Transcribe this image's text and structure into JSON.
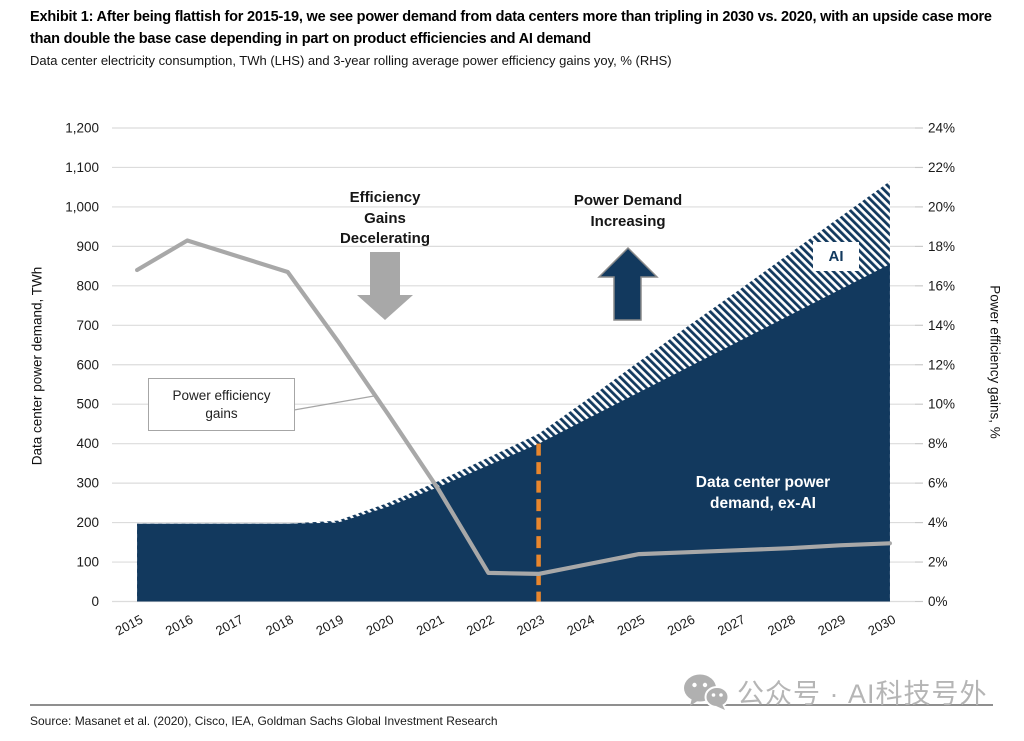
{
  "header": {
    "title": "Exhibit 1: After being flattish for 2015-19, we see power demand from data centers more than tripling in 2030 vs. 2020, with an upside case more than double the base case depending in part on product efficiencies and AI demand",
    "subtitle": "Data center electricity consumption, TWh (LHS) and 3-year rolling average power efficiency gains yoy, % (RHS)"
  },
  "chart_data": {
    "type": "area",
    "x": [
      2015,
      2016,
      2017,
      2018,
      2019,
      2020,
      2021,
      2022,
      2023,
      2024,
      2025,
      2026,
      2027,
      2028,
      2029,
      2030
    ],
    "series": [
      {
        "name": "Data center power demand, ex-AI",
        "type": "area",
        "axis": "left",
        "style": "solid",
        "values": [
          197,
          197,
          197,
          197,
          200,
          240,
          290,
          345,
          400,
          465,
          530,
          595,
          660,
          725,
          790,
          855
        ]
      },
      {
        "name": "AI",
        "type": "area",
        "axis": "left",
        "style": "hatch",
        "stacked_on": "Data center power demand, ex-AI",
        "values": [
          0,
          0,
          0,
          0,
          5,
          10,
          15,
          20,
          25,
          50,
          78,
          105,
          130,
          157,
          184,
          210
        ]
      },
      {
        "name": "Power efficiency gains",
        "type": "line",
        "axis": "right",
        "values": [
          16.8,
          18.3,
          17.5,
          16.7,
          13.2,
          9.5,
          5.7,
          1.45,
          1.4,
          1.9,
          2.4,
          2.5,
          2.6,
          2.7,
          2.85,
          2.95
        ]
      }
    ],
    "ylabel_left": "Data center power demand, TWh",
    "ylabel_right": "Power efficiency gains, %",
    "ylim_left": [
      0,
      1200
    ],
    "ytick_left_step": 100,
    "ylim_right": [
      0,
      24
    ],
    "ytick_right_step": 2,
    "grid": true,
    "divider_line": {
      "x": 2023,
      "style": "dashed",
      "color": "#E8862D"
    }
  },
  "annotations": {
    "efficiency": {
      "lines": [
        "Efficiency",
        "Gains",
        "Decelerating"
      ]
    },
    "power_demand": {
      "lines": [
        "Power Demand",
        "Increasing"
      ]
    },
    "efficiency_line_label": "Power efficiency gains",
    "ai_label": "AI",
    "ex_ai_label": {
      "lines": [
        "Data center power",
        "demand, ex-AI"
      ]
    }
  },
  "colors": {
    "navy": "#12395E",
    "line_gray": "#A8A8A8",
    "arrow_gray": "#A8A8A8",
    "orange": "#E8862D",
    "grid": "#DCDCDC",
    "tick": "#C9C9C9",
    "axis_text": "#1A1A1A"
  },
  "footer": {
    "source": "Source: Masanet et al. (2020), Cisco, IEA, Goldman Sachs Global Investment Research"
  },
  "watermark": {
    "text": "公众号 · AI科技号外"
  }
}
